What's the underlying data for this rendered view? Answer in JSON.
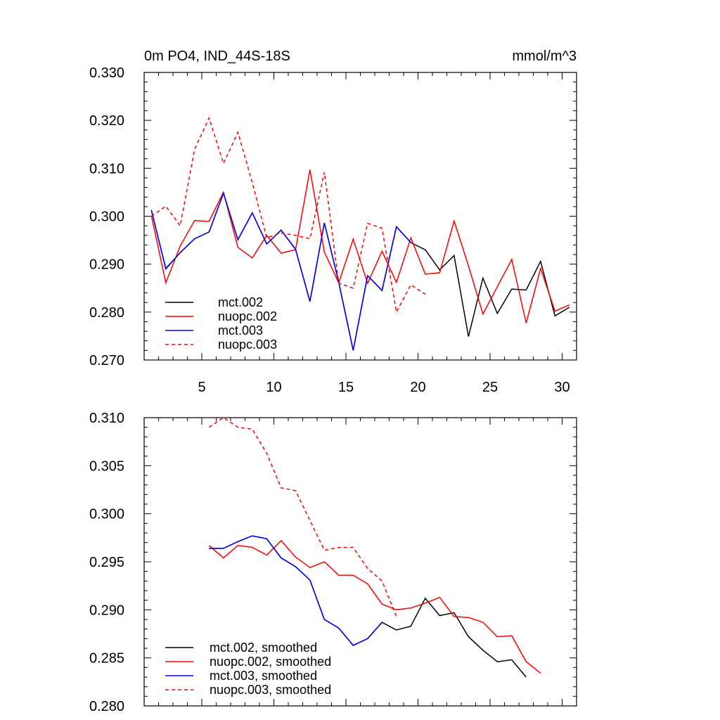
{
  "chart_data": [
    {
      "type": "line",
      "title": "0m PO4, IND_44S-18S",
      "units": "mmol/m^3",
      "xlim": [
        1,
        31
      ],
      "ylim": [
        0.27,
        0.33
      ],
      "x_ticks": [
        5,
        10,
        15,
        20,
        25,
        30
      ],
      "x_tick_labels": [
        "5",
        "10",
        "15",
        "20",
        "25",
        "30"
      ],
      "y_ticks": [
        0.27,
        0.28,
        0.29,
        0.3,
        0.31,
        0.32,
        0.33
      ],
      "y_tick_labels": [
        "0.270",
        "0.280",
        "0.290",
        "0.300",
        "0.310",
        "0.320",
        "0.330"
      ],
      "legend_position": "bottom-left",
      "series": [
        {
          "name": "mct.002",
          "color": "#000000",
          "dash": "solid",
          "x": [
            1.5,
            2.5,
            3.5,
            4.5,
            5.5,
            6.5,
            7.5,
            8.5,
            9.5,
            10.5,
            11.5,
            12.5,
            13.5,
            14.5,
            15.5,
            16.5,
            17.5,
            18.5,
            19.5,
            20.5,
            21.5,
            22.5,
            23.5,
            24.5,
            25.5,
            26.5,
            27.5,
            28.5,
            29.5,
            30.5
          ],
          "values": [
            0.3012,
            0.2891,
            0.2924,
            0.2953,
            0.2967,
            0.3048,
            0.2951,
            0.3007,
            0.2942,
            0.2971,
            0.2931,
            0.2822,
            0.2986,
            0.2862,
            0.272,
            0.2876,
            0.2845,
            0.2978,
            0.2945,
            0.293,
            0.2888,
            0.2918,
            0.2749,
            0.2871,
            0.2797,
            0.2848,
            0.2846,
            0.2906,
            0.2792,
            0.281
          ]
        },
        {
          "name": "nuopc.002",
          "color": "#ff0000",
          "dash": "solid",
          "x": [
            1.5,
            2.5,
            3.5,
            4.5,
            5.5,
            6.5,
            7.5,
            8.5,
            9.5,
            10.5,
            11.5,
            12.5,
            13.5,
            14.5,
            15.5,
            16.5,
            17.5,
            18.5,
            19.5,
            20.5,
            21.5,
            22.5,
            23.5,
            24.5,
            25.5,
            26.5,
            27.5,
            28.5,
            29.5,
            30.5
          ],
          "values": [
            0.3001,
            0.2861,
            0.2938,
            0.2991,
            0.2989,
            0.305,
            0.2935,
            0.2913,
            0.296,
            0.2923,
            0.293,
            0.3097,
            0.2925,
            0.2861,
            0.2952,
            0.286,
            0.2927,
            0.2862,
            0.2955,
            0.2879,
            0.2882,
            0.299,
            0.2896,
            0.2796,
            0.2853,
            0.291,
            0.2777,
            0.2891,
            0.2802,
            0.2815
          ]
        },
        {
          "name": "mct.003",
          "color": "#0000ff",
          "dash": "solid",
          "x": [
            1.5,
            2.5,
            3.5,
            4.5,
            5.5,
            6.5,
            7.5,
            8.5,
            9.5,
            10.5,
            11.5,
            12.5,
            13.5,
            14.5,
            15.5,
            16.5,
            17.5,
            18.5,
            19.5
          ],
          "values": [
            0.3013,
            0.289,
            0.2924,
            0.2953,
            0.2967,
            0.3048,
            0.2951,
            0.3007,
            0.2942,
            0.2971,
            0.2931,
            0.2822,
            0.2986,
            0.2862,
            0.272,
            0.2876,
            0.2845,
            0.2978,
            0.2945
          ]
        },
        {
          "name": "nuopc.003",
          "color": "#ff0000",
          "dash": "dashed",
          "x": [
            1.5,
            2.5,
            3.5,
            4.5,
            5.5,
            6.5,
            7.5,
            8.5,
            9.5,
            10.5,
            11.5,
            12.5,
            13.5,
            14.5,
            15.5,
            16.5,
            17.5,
            18.5,
            19.5,
            20.5
          ],
          "values": [
            0.3,
            0.3021,
            0.298,
            0.314,
            0.3205,
            0.311,
            0.3175,
            0.307,
            0.2955,
            0.2965,
            0.296,
            0.2953,
            0.3092,
            0.286,
            0.285,
            0.2985,
            0.2975,
            0.28,
            0.2857,
            0.2837
          ]
        }
      ]
    },
    {
      "type": "line",
      "title": "",
      "xlim": [
        1,
        31
      ],
      "ylim": [
        0.28,
        0.31
      ],
      "x_ticks": [
        5,
        10,
        15,
        20,
        25,
        30
      ],
      "x_tick_labels": [],
      "y_ticks": [
        0.28,
        0.285,
        0.29,
        0.295,
        0.3,
        0.305,
        0.31
      ],
      "y_tick_labels": [
        "0.280",
        "0.285",
        "0.290",
        "0.295",
        "0.300",
        "0.305",
        "0.310"
      ],
      "legend_position": "bottom-left",
      "series": [
        {
          "name": "mct.002, smoothed",
          "color": "#000000",
          "dash": "solid",
          "x": [
            5.5,
            6.5,
            7.5,
            8.5,
            9.5,
            10.5,
            11.5,
            12.5,
            13.5,
            14.5,
            15.5,
            16.5,
            17.5,
            18.5,
            19.5,
            20.5,
            21.5,
            22.5,
            23.5,
            24.5,
            25.5,
            26.5,
            27.5
          ],
          "values": [
            0.2964,
            0.2964,
            0.2971,
            0.2977,
            0.2974,
            0.2954,
            0.2945,
            0.2931,
            0.289,
            0.2881,
            0.2863,
            0.287,
            0.2887,
            0.2879,
            0.2883,
            0.2912,
            0.2894,
            0.2897,
            0.2872,
            0.2858,
            0.2846,
            0.2848,
            0.283
          ]
        },
        {
          "name": "nuopc.002, smoothed",
          "color": "#ff0000",
          "dash": "solid",
          "x": [
            5.5,
            6.5,
            7.5,
            8.5,
            9.5,
            10.5,
            11.5,
            12.5,
            13.5,
            14.5,
            15.5,
            16.5,
            17.5,
            18.5,
            19.5,
            20.5,
            21.5,
            22.5,
            23.5,
            24.5,
            25.5,
            26.5,
            27.5,
            28.5
          ],
          "values": [
            0.2967,
            0.2954,
            0.2967,
            0.2965,
            0.2957,
            0.2972,
            0.2955,
            0.2944,
            0.295,
            0.2936,
            0.2936,
            0.2927,
            0.2906,
            0.29,
            0.2902,
            0.2907,
            0.2913,
            0.2893,
            0.2892,
            0.2887,
            0.2872,
            0.2873,
            0.2846,
            0.2834
          ]
        },
        {
          "name": "mct.003, smoothed",
          "color": "#0000ff",
          "dash": "solid",
          "x": [
            5.5,
            6.5,
            7.5,
            8.5,
            9.5,
            10.5,
            11.5,
            12.5,
            13.5,
            14.5,
            15.5,
            16.5,
            17.5
          ],
          "values": [
            0.2964,
            0.2964,
            0.2971,
            0.2977,
            0.2974,
            0.2954,
            0.2945,
            0.2931,
            0.289,
            0.2881,
            0.2863,
            0.287,
            0.2887
          ]
        },
        {
          "name": "nuopc.003, smoothed",
          "color": "#ff0000",
          "dash": "dashed",
          "x": [
            5.5,
            6.5,
            7.5,
            8.5,
            9.5,
            10.5,
            11.5,
            12.5,
            13.5,
            14.5,
            15.5,
            16.5,
            17.5,
            18.5
          ],
          "values": [
            0.309,
            0.31,
            0.309,
            0.3088,
            0.3063,
            0.3027,
            0.3024,
            0.2993,
            0.2962,
            0.2965,
            0.2965,
            0.2943,
            0.293,
            0.2893
          ]
        }
      ]
    }
  ]
}
